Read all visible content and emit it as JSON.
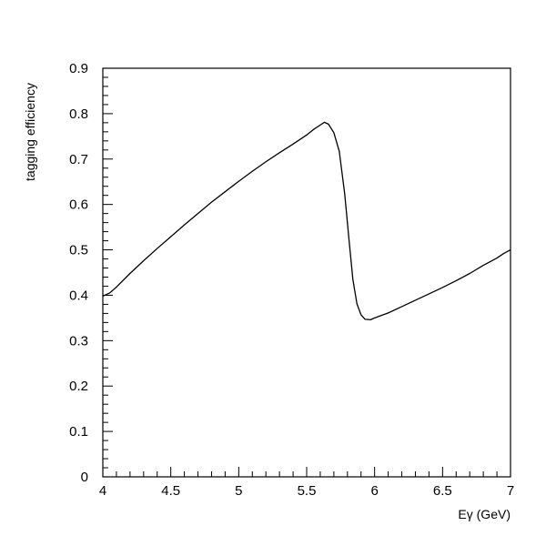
{
  "chart_data": {
    "type": "line",
    "title": "",
    "xlabel": "Eγ (GeV)",
    "ylabel": "tagging efficiency",
    "xlim": [
      4,
      7
    ],
    "ylim": [
      0,
      0.9
    ],
    "grid": false,
    "x_ticks": [
      4,
      4.5,
      5,
      5.5,
      6,
      6.5,
      7
    ],
    "x_tick_labels": [
      "4",
      "4.5",
      "5",
      "5.5",
      "6",
      "6.5",
      "7"
    ],
    "y_ticks": [
      0,
      0.1,
      0.2,
      0.3,
      0.4,
      0.5,
      0.6,
      0.7,
      0.8,
      0.9
    ],
    "y_tick_labels": [
      "0",
      "0.1",
      "0.2",
      "0.3",
      "0.4",
      "0.5",
      "0.6",
      "0.7",
      "0.8",
      "0.9"
    ],
    "series": [
      {
        "x": [
          4.0,
          4.05,
          4.1,
          4.2,
          4.3,
          4.4,
          4.5,
          4.6,
          4.7,
          4.8,
          4.9,
          5.0,
          5.1,
          5.2,
          5.3,
          5.4,
          5.5,
          5.55,
          5.6,
          5.63,
          5.66,
          5.7,
          5.74,
          5.78,
          5.81,
          5.84,
          5.87,
          5.9,
          5.93,
          5.97,
          6.0,
          6.1,
          6.2,
          6.3,
          6.4,
          6.5,
          6.6,
          6.7,
          6.8,
          6.9,
          6.95,
          7.0
        ],
        "y": [
          0.398,
          0.405,
          0.418,
          0.448,
          0.476,
          0.503,
          0.529,
          0.555,
          0.58,
          0.605,
          0.628,
          0.651,
          0.673,
          0.694,
          0.714,
          0.733,
          0.753,
          0.765,
          0.775,
          0.781,
          0.777,
          0.758,
          0.717,
          0.623,
          0.527,
          0.435,
          0.381,
          0.357,
          0.347,
          0.346,
          0.35,
          0.361,
          0.375,
          0.389,
          0.403,
          0.417,
          0.432,
          0.448,
          0.466,
          0.482,
          0.492,
          0.5
        ]
      }
    ]
  }
}
